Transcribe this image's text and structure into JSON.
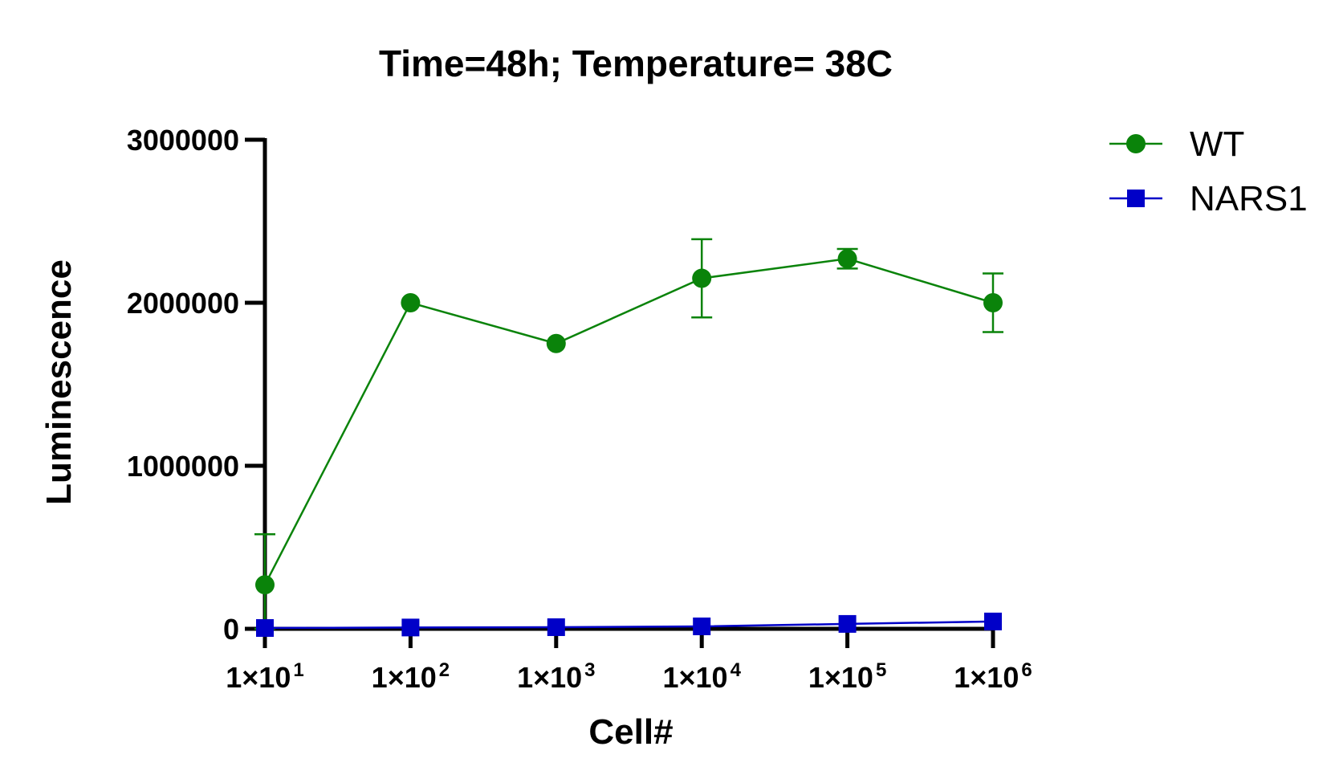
{
  "chart_data": {
    "type": "line",
    "title": "Time=48h; Temperature= 38C",
    "xlabel": "Cell#",
    "ylabel": "Luminescence",
    "x_scale": "log",
    "x": [
      10,
      100,
      1000,
      10000,
      100000,
      1000000
    ],
    "x_tick_labels": [
      {
        "base": "1×10",
        "exp": "1"
      },
      {
        "base": "1×10",
        "exp": "2"
      },
      {
        "base": "1×10",
        "exp": "3"
      },
      {
        "base": "1×10",
        "exp": "4"
      },
      {
        "base": "1×10",
        "exp": "5"
      },
      {
        "base": "1×10",
        "exp": "6"
      }
    ],
    "ylim": [
      0,
      3000000
    ],
    "y_ticks": [
      0,
      1000000,
      2000000,
      3000000
    ],
    "y_tick_labels": [
      "0",
      "1000000",
      "2000000",
      "3000000"
    ],
    "grid": false,
    "legend_position": "top-right",
    "series": [
      {
        "name": "WT",
        "color": "#0a830a",
        "marker": "circle",
        "values": [
          270000,
          2000000,
          1750000,
          2150000,
          2270000,
          2000000
        ],
        "error": [
          310000,
          0,
          0,
          240000,
          60000,
          180000
        ]
      },
      {
        "name": "NARS1",
        "color": "#0000c8",
        "marker": "square",
        "values": [
          5000,
          8000,
          10000,
          15000,
          30000,
          45000
        ],
        "error": [
          0,
          0,
          0,
          0,
          0,
          0
        ]
      }
    ]
  }
}
